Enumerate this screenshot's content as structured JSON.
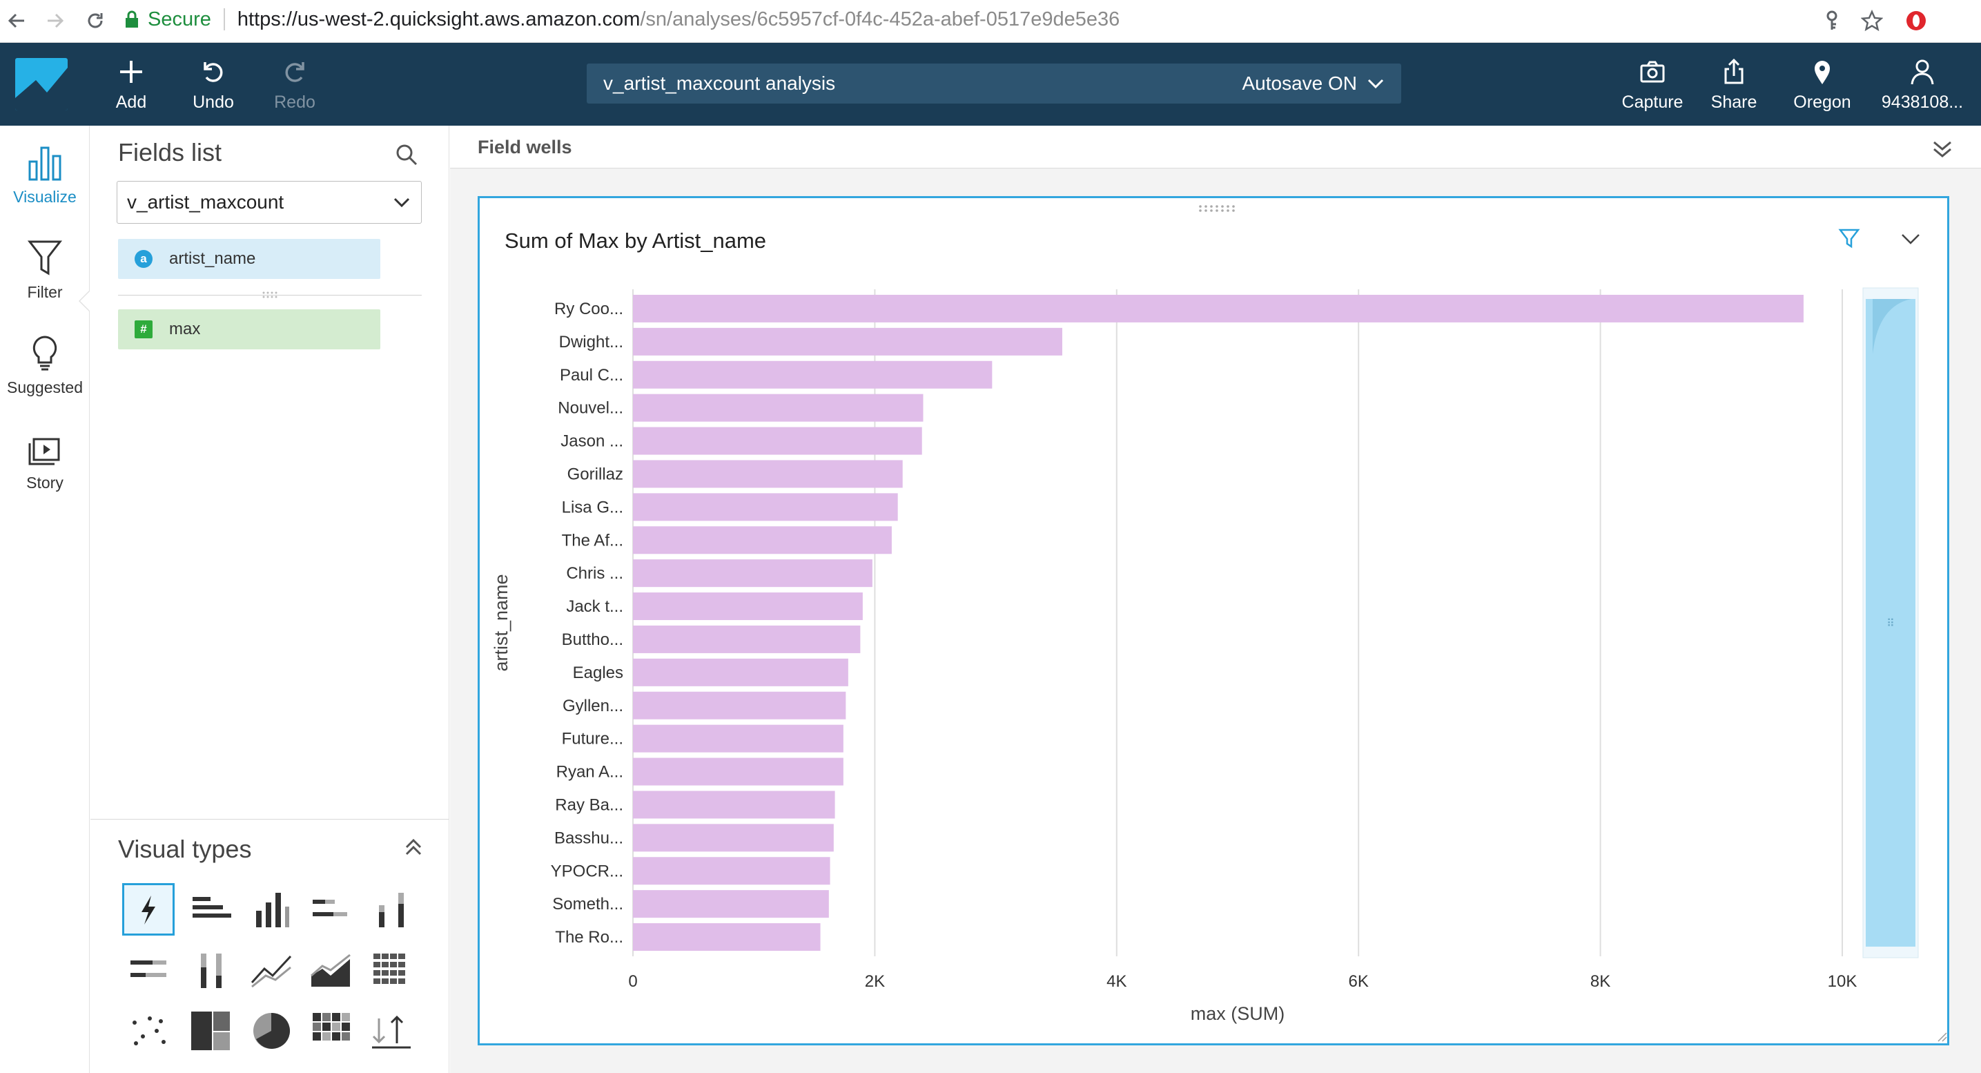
{
  "browser": {
    "secure_label": "Secure",
    "url_main": "https://us-west-2.quicksight.aws.amazon.com",
    "url_path": "/sn/analyses/6c5957cf-0f4c-452a-abef-0517e9de5e36"
  },
  "header": {
    "add_label": "Add",
    "undo_label": "Undo",
    "redo_label": "Redo",
    "analysis_title": "v_artist_maxcount analysis",
    "autosave_label": "Autosave ON",
    "capture_label": "Capture",
    "share_label": "Share",
    "region_label": "Oregon",
    "account_label": "9438108..."
  },
  "rail": {
    "items": [
      {
        "label": "Visualize"
      },
      {
        "label": "Filter"
      },
      {
        "label": "Suggested"
      },
      {
        "label": "Story"
      }
    ]
  },
  "fields_panel": {
    "title": "Fields list",
    "dataset": "v_artist_maxcount",
    "fields": [
      {
        "name": "artist_name",
        "type_badge": "a"
      },
      {
        "name": "max",
        "type_badge": "#"
      }
    ],
    "visual_types_title": "Visual types"
  },
  "main": {
    "field_wells_label": "Field wells"
  },
  "colors": {
    "header_bg": "#1a3c55",
    "accent": "#26b1e6",
    "bar_fill": "#e0bde9",
    "card_border": "#32a6de",
    "scrollbar_fill": "#a7dcf4"
  },
  "chart_data": {
    "type": "bar",
    "orientation": "horizontal",
    "title": "Sum of Max by Artist_name",
    "xlabel": "max (SUM)",
    "ylabel": "artist_name",
    "xlim": [
      0,
      10000
    ],
    "xticks": [
      "0",
      "2K",
      "4K",
      "6K",
      "8K",
      "10K"
    ],
    "grid": true,
    "categories": [
      "Ry Coo...",
      "Dwight...",
      "Paul C...",
      "Nouvel...",
      "Jason ...",
      "Gorillaz",
      "Lisa G...",
      "The Af...",
      "Chris ...",
      "Jack t...",
      "Buttho...",
      "Eagles",
      "Gyllen...",
      "Future...",
      "Ryan A...",
      "Ray Ba...",
      "Basshu...",
      "YPOCR...",
      "Someth...",
      "The Ro..."
    ],
    "series": [
      {
        "values": [
          9680,
          3550,
          2970,
          2400,
          2390,
          2230,
          2190,
          2140,
          1980,
          1900,
          1880,
          1780,
          1760,
          1740,
          1740,
          1670,
          1660,
          1630,
          1620,
          1550
        ]
      }
    ]
  }
}
